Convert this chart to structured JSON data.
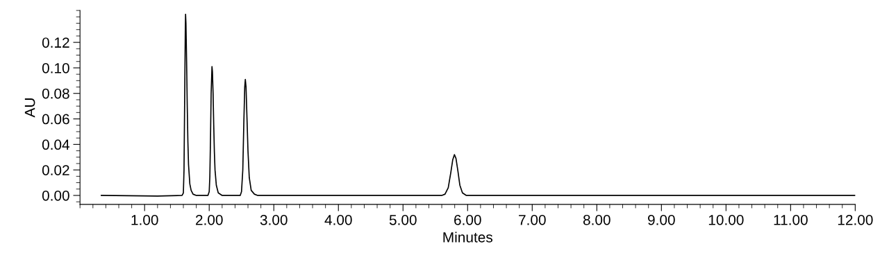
{
  "chart_data": {
    "type": "line",
    "xlabel": "Minutes",
    "ylabel": "AU",
    "series": [
      {
        "color": "#000000",
        "x": [
          0.33,
          1.2,
          1.58,
          1.6,
          1.61,
          1.62,
          1.63,
          1.634,
          1.64,
          1.65,
          1.66,
          1.67,
          1.68,
          1.7,
          1.72,
          1.75,
          1.8,
          1.98,
          2.0,
          2.01,
          2.02,
          2.03,
          2.043,
          2.05,
          2.06,
          2.07,
          2.08,
          2.09,
          2.11,
          2.14,
          2.2,
          2.48,
          2.5,
          2.52,
          2.535,
          2.55,
          2.559,
          2.57,
          2.585,
          2.6,
          2.62,
          2.65,
          2.7,
          2.75,
          5.6,
          5.65,
          5.7,
          5.74,
          5.77,
          5.796,
          5.82,
          5.85,
          5.88,
          5.92,
          5.98,
          12.0
        ],
        "values": [
          0.0,
          -0.0005,
          0.0,
          0.002,
          0.02,
          0.075,
          0.13,
          0.142,
          0.135,
          0.105,
          0.07,
          0.042,
          0.024,
          0.009,
          0.004,
          0.001,
          0.0,
          0.0,
          0.003,
          0.015,
          0.045,
          0.08,
          0.101,
          0.097,
          0.08,
          0.055,
          0.034,
          0.02,
          0.008,
          0.002,
          0.0,
          0.0,
          0.003,
          0.02,
          0.055,
          0.085,
          0.091,
          0.085,
          0.06,
          0.035,
          0.014,
          0.004,
          0.001,
          0.0,
          0.0,
          0.001,
          0.006,
          0.018,
          0.028,
          0.032,
          0.029,
          0.019,
          0.008,
          0.002,
          0.0,
          0.0
        ]
      }
    ],
    "xlim": [
      0,
      12
    ],
    "ylim": [
      -0.007,
      0.145
    ],
    "xticks": [
      {
        "value": 1,
        "label": "1.00"
      },
      {
        "value": 2,
        "label": "2.00"
      },
      {
        "value": 3,
        "label": "3.00"
      },
      {
        "value": 4,
        "label": "4.00"
      },
      {
        "value": 5,
        "label": "5.00"
      },
      {
        "value": 6,
        "label": "6.00"
      },
      {
        "value": 7,
        "label": "7.00"
      },
      {
        "value": 8,
        "label": "8.00"
      },
      {
        "value": 9,
        "label": "9.00"
      },
      {
        "value": 10,
        "label": "10.00"
      },
      {
        "value": 11,
        "label": "11.00"
      },
      {
        "value": 12,
        "label": "12.00"
      }
    ],
    "yticks": [
      {
        "value": 0,
        "label": "0.00"
      },
      {
        "value": 0.02,
        "label": "0.02"
      },
      {
        "value": 0.04,
        "label": "0.04"
      },
      {
        "value": 0.06,
        "label": "0.06"
      },
      {
        "value": 0.08,
        "label": "0.08"
      },
      {
        "value": 0.1,
        "label": "0.10"
      },
      {
        "value": 0.12,
        "label": "0.12"
      }
    ],
    "grid": false,
    "legend": false,
    "marker": "none",
    "line_style": "solid"
  }
}
